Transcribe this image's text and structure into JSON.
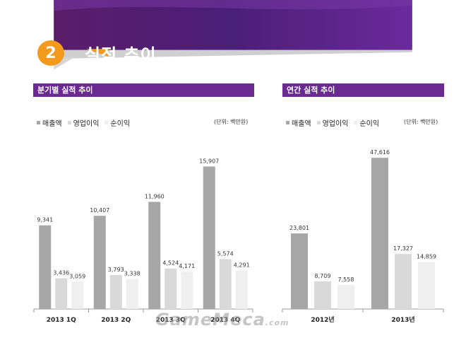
{
  "header": {
    "badge": "2",
    "title": "실적 추이"
  },
  "colors": {
    "purple": "#6a2a92",
    "orange": "#f39a1c",
    "s1": "#a6a6a6",
    "s2": "#d9d9d9",
    "s3": "#efefef"
  },
  "legend": {
    "s1": "매출액",
    "s2": "영업이익",
    "s3": "순이익"
  },
  "unit": "(단위: 백만원)",
  "watermark": {
    "main": "GameMeca",
    "suffix": ".com"
  },
  "chart_data": [
    {
      "type": "bar",
      "title": "분기별 실적 추이",
      "categories": [
        "2013 1Q",
        "2013 2Q",
        "2013 3Q",
        "2013 4Q"
      ],
      "series": [
        {
          "name": "매출액",
          "values": [
            9341,
            10407,
            11960,
            15907
          ],
          "labels": [
            "9,341",
            "10,407",
            "11,960",
            "15,907"
          ]
        },
        {
          "name": "영업이익",
          "values": [
            3436,
            3793,
            4524,
            5574
          ],
          "labels": [
            "3,436",
            "3,793",
            "4,524",
            "5,574"
          ]
        },
        {
          "name": "순이익",
          "values": [
            3059,
            3338,
            4171,
            4291
          ],
          "labels": [
            "3,059",
            "3,338",
            "4,171",
            "4,291"
          ]
        }
      ],
      "ylim": [
        0,
        18000
      ]
    },
    {
      "type": "bar",
      "title": "연간 실적 추이",
      "categories": [
        "2012년",
        "2013년"
      ],
      "series": [
        {
          "name": "매출액",
          "values": [
            23801,
            47616
          ],
          "labels": [
            "23,801",
            "47,616"
          ]
        },
        {
          "name": "영업이익",
          "values": [
            8709,
            17327
          ],
          "labels": [
            "8,709",
            "17,327"
          ]
        },
        {
          "name": "순이익",
          "values": [
            7558,
            14859
          ],
          "labels": [
            "7,558",
            "14,859"
          ]
        }
      ],
      "ylim": [
        0,
        53000
      ]
    }
  ]
}
